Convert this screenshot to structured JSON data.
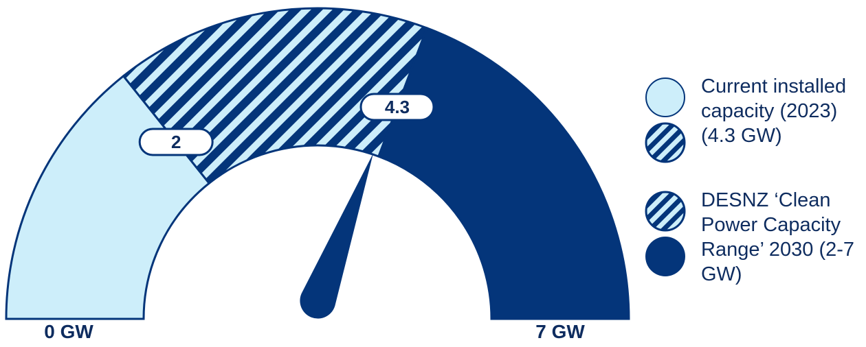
{
  "colors": {
    "navy": "#04357a",
    "light": "#cdeefa",
    "text": "#0e2c5f"
  },
  "chart_data": {
    "type": "gauge",
    "min": 0,
    "max": 7,
    "unit": "GW",
    "min_label": "0 GW",
    "max_label": "7 GW",
    "bands": [
      {
        "from": 0,
        "to": 2,
        "style": "light"
      },
      {
        "from": 2,
        "to": 4.3,
        "style": "hatched"
      },
      {
        "from": 4.3,
        "to": 7,
        "style": "navy"
      }
    ],
    "markers": [
      {
        "value": 2,
        "label": "2"
      },
      {
        "value": 4.3,
        "label": "4.3"
      }
    ],
    "needle_value": 4.3
  },
  "legend": {
    "current_label": "Current installed capacity (2023) (4.3 GW)",
    "range_label": "DESNZ ‘Clean Power Capacity Range’ 2030 (2-7 GW)"
  }
}
